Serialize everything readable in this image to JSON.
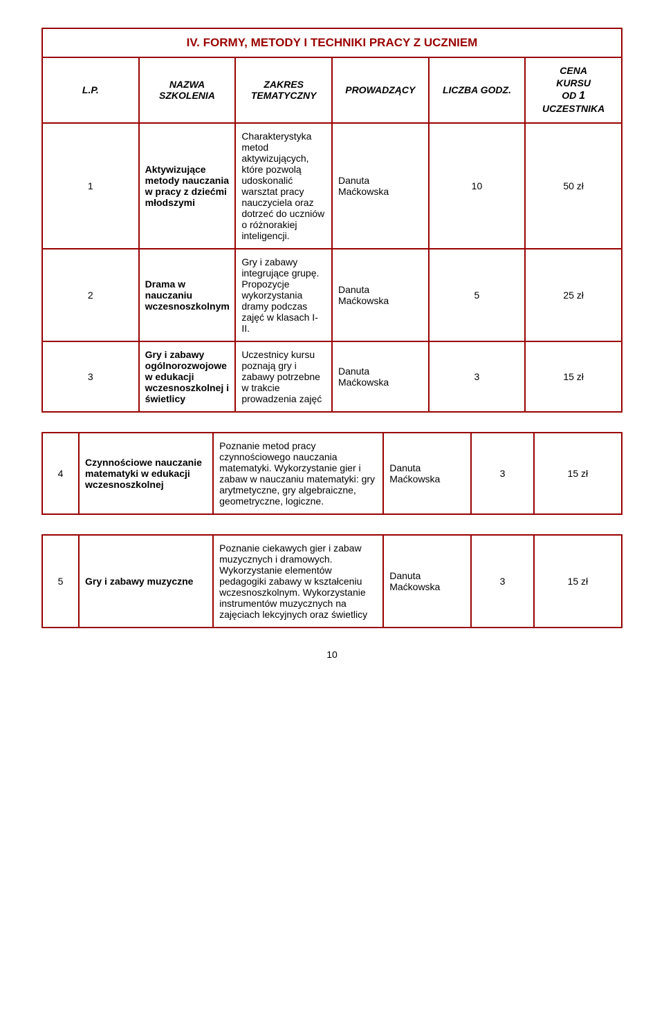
{
  "section_title": "IV. FORMY, METODY I TECHNIKI PRACY Z UCZNIEM",
  "headers": {
    "lp": "L.P.",
    "name": "NAZWA SZKOLENIA",
    "scope": "ZAKRES TEMATYCZNY",
    "lead": "PROWADZĄCY",
    "hours": "LICZBA GODZ.",
    "price_l1": "CENA",
    "price_l2": "KURSU",
    "price_l3": "OD",
    "price_n": "1",
    "price_l4": "UCZESTNIKA"
  },
  "rows": [
    {
      "lp": "1",
      "name": "Aktywizujące metody nauczania w pracy z dziećmi młodszymi",
      "scope": "Charakterystyka metod aktywizujących, które pozwolą udoskonalić warsztat pracy nauczyciela oraz dotrzeć do uczniów  o różnorakiej inteligencji.",
      "lead": "Danuta Maćkowska",
      "hours": "10",
      "price": "50 zł"
    },
    {
      "lp": "2",
      "name": "Drama w nauczaniu wczesnoszkolnym",
      "scope": "Gry i zabawy integrujące grupę. Propozycje wykorzystania dramy podczas zajęć w klasach I-II.",
      "lead": "Danuta Maćkowska",
      "hours": "5",
      "price": "25 zł"
    },
    {
      "lp": "3",
      "name": "Gry i zabawy ogólnorozwojowe w edukacji wczesnoszkolnej  i świetlicy",
      "scope": "Uczestnicy kursu poznają gry  i zabawy potrzebne w trakcie prowadzenia zajęć",
      "lead": "Danuta Maćkowska",
      "hours": "3",
      "price": "15 zł"
    },
    {
      "lp": "4",
      "name": "Czynnościowe nauczanie matematyki w edukacji wczesnoszkolnej",
      "scope": "Poznanie metod pracy czynnościowego nauczania matematyki. Wykorzystanie gier i zabaw w nauczaniu matematyki: gry arytmetyczne, gry algebraiczne, geometryczne, logiczne.",
      "lead": "Danuta Maćkowska",
      "hours": "3",
      "price": "15 zł"
    },
    {
      "lp": "5",
      "name": "Gry  i  zabawy muzyczne",
      "scope": "Poznanie ciekawych gier i zabaw muzycznych i dramowych. Wykorzystanie elementów pedagogiki zabawy w kształceniu wczesnoszkolnym. Wykorzystanie instrumentów muzycznych na zajęciach lekcyjnych oraz świetlicy",
      "lead": "Danuta Maćkowska",
      "hours": "3",
      "price": "15 zł"
    }
  ],
  "page_number": "10",
  "colors": {
    "border": "#990000",
    "title": "#990000",
    "text": "#000000",
    "background": "#ffffff"
  },
  "fonts": {
    "family": "Arial",
    "title_size_pt": 13,
    "header_size_pt": 11,
    "body_size_pt": 11
  }
}
